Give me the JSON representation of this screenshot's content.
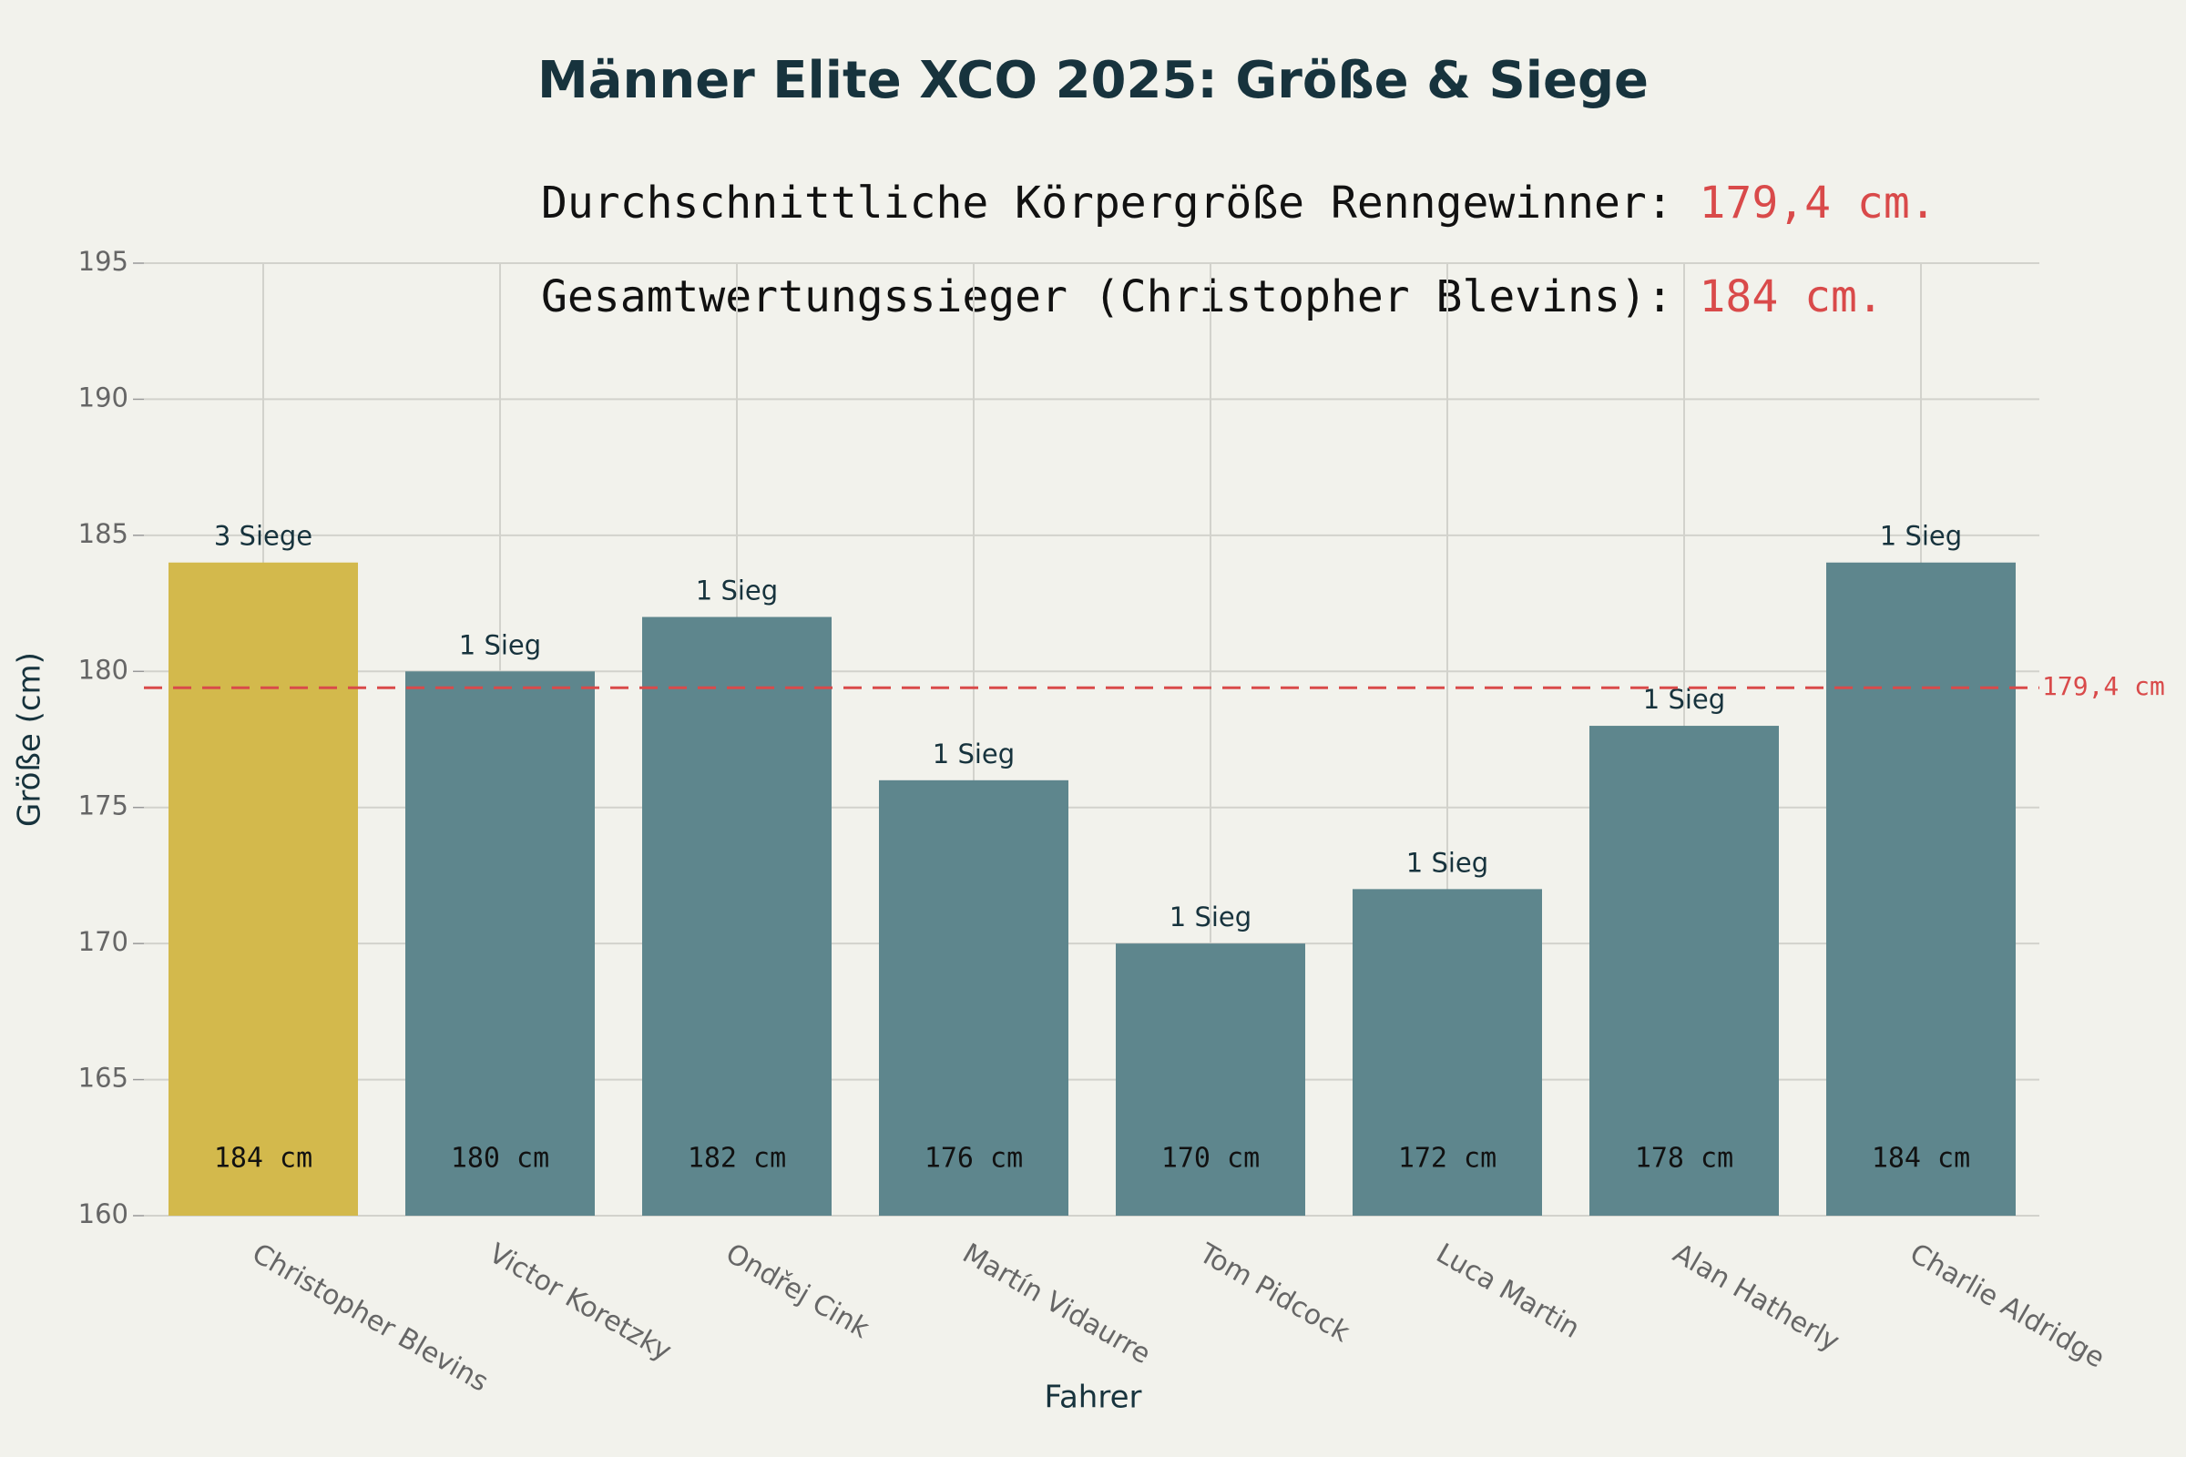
{
  "chart_data": {
    "type": "bar",
    "title": "Männer Elite XCO 2025: Größe & Siege",
    "annotations": [
      {
        "text": "Durchschnittliche Körpergröße Renngewinner: ",
        "highlight": "179,4 cm."
      },
      {
        "text": "Gesamtwertungssieger (Christopher Blevins): ",
        "highlight": "184 cm."
      }
    ],
    "x_label": "Fahrer",
    "y_label": "Größe (cm)",
    "categories": [
      "Christopher Blevins",
      "Victor Koretzky",
      "Ondřej Cink",
      "Martín Vidaurre",
      "Tom Pidcock",
      "Luca Martin",
      "Alan Hatherly",
      "Charlie Aldridge"
    ],
    "values": [
      184,
      180,
      182,
      176,
      170,
      172,
      178,
      184
    ],
    "value_labels": [
      "184 cm",
      "180 cm",
      "182 cm",
      "176 cm",
      "170 cm",
      "172 cm",
      "178 cm",
      "184 cm"
    ],
    "top_labels": [
      "3 Siege",
      "1 Sieg",
      "1 Sieg",
      "1 Sieg",
      "1 Sieg",
      "1 Sieg",
      "1 Sieg",
      "1 Sieg"
    ],
    "colors": [
      "#d3b94c",
      "#5e868d",
      "#5e868d",
      "#5e868d",
      "#5e868d",
      "#5e868d",
      "#5e868d",
      "#5e868d"
    ],
    "reference_line": {
      "value": 179.4,
      "label": "179,4 cm",
      "color": "#d94a4a"
    },
    "ylim": [
      160,
      195
    ],
    "yticks": [
      160,
      165,
      170,
      175,
      180,
      185,
      190,
      195
    ],
    "grid": true
  }
}
